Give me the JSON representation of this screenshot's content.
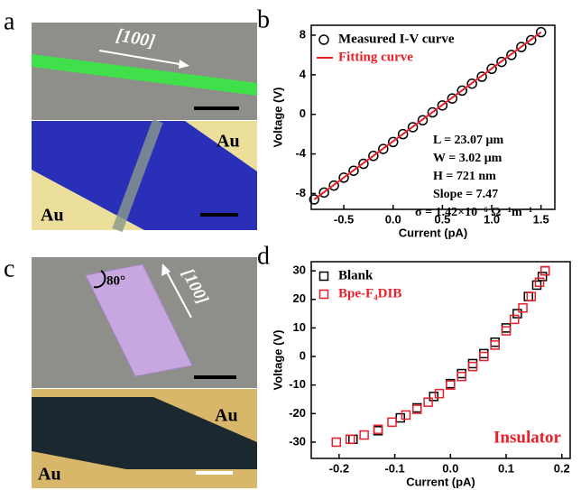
{
  "panels": {
    "a": {
      "label": "a",
      "direction": "[100]",
      "electrodes": [
        "Au",
        "Au"
      ]
    },
    "c": {
      "label": "c",
      "angle": "80°",
      "direction": "[100]",
      "electrodes": [
        "Au",
        "Au"
      ]
    }
  },
  "chart_data": [
    {
      "type": "scatter",
      "label": "b",
      "x_label": "Current (pA)",
      "y_label": "Voltage (V)",
      "xlim": [
        -0.83,
        1.64
      ],
      "ylim": [
        -9.6,
        9.0
      ],
      "xticks": [
        -0.5,
        {
          "value": 0,
          "label": "0.0"
        },
        0.5,
        {
          "value": 1,
          "label": "1.0"
        },
        1.5
      ],
      "yticks": [
        -8,
        -4,
        0,
        4,
        8
      ],
      "legend": "upper left",
      "series": [
        {
          "name": "Measured I-V curve",
          "color": "#000000",
          "marker": "circle",
          "x": [
            -0.8,
            -0.7,
            -0.6,
            -0.5,
            -0.4,
            -0.3,
            -0.2,
            -0.1,
            0,
            0.1,
            0.2,
            0.3,
            0.4,
            0.5,
            0.6,
            0.7,
            0.8,
            0.9,
            1.0,
            1.1,
            1.2,
            1.3,
            1.4,
            1.5
          ],
          "values": [
            -8.6,
            -7.9,
            -7.2,
            -6.4,
            -5.7,
            -5.0,
            -4.2,
            -3.5,
            -2.8,
            -2.0,
            -1.3,
            -0.6,
            0.2,
            0.9,
            1.6,
            2.4,
            3.1,
            3.8,
            4.6,
            5.3,
            6.0,
            6.8,
            7.5,
            8.3
          ]
        },
        {
          "name": "Fitting curve",
          "color": "#e8202a",
          "marker": "line",
          "x": [
            -0.8,
            1.5
          ],
          "values": [
            -8.6,
            8.3
          ]
        }
      ],
      "annotations": [
        "L = 23.07 μm",
        "W = 3.02 μm",
        "H = 721 nm",
        "Slope = 7.47",
        "σ = 1.42×10⁻⁶ Ω⁻¹m⁻¹"
      ],
      "annotation_color": "#000000"
    },
    {
      "type": "scatter",
      "label": "d",
      "x_label": "Current (pA)",
      "y_label": "Voltage (V)",
      "xlim": [
        -0.25,
        0.215
      ],
      "ylim": [
        -35.7,
        33.2
      ],
      "xticks": [
        -0.2,
        -0.1,
        {
          "value": 0,
          "label": "0.0"
        },
        0.1,
        0.2
      ],
      "yticks": [
        -30,
        -20,
        -10,
        0,
        10,
        20,
        30
      ],
      "legend": "upper left",
      "series": [
        {
          "name": "Blank",
          "color": "#000000",
          "marker": "square",
          "x": [
            -0.175,
            -0.13,
            -0.09,
            -0.06,
            -0.03,
            0,
            0.02,
            0.04,
            0.06,
            0.08,
            0.1,
            0.12,
            0.14,
            0.155,
            0.165,
            0.17
          ],
          "values": [
            -29,
            -26,
            -21.5,
            -18,
            -14,
            -9.5,
            -6,
            -2.5,
            1,
            5,
            10,
            15,
            21,
            25,
            28,
            30
          ]
        },
        {
          "name": "Bpe-F₄DIB",
          "color": "#e8202a",
          "marker": "square",
          "x": [
            -0.205,
            -0.18,
            -0.155,
            -0.13,
            -0.105,
            -0.08,
            -0.06,
            -0.04,
            -0.02,
            0,
            0.02,
            0.04,
            0.06,
            0.08,
            0.1,
            0.115,
            0.13,
            0.145,
            0.16,
            0.17
          ],
          "values": [
            -30,
            -29,
            -27.5,
            -25.5,
            -23,
            -20.5,
            -18.5,
            -16,
            -13,
            -10,
            -7,
            -3.5,
            0,
            4,
            9,
            13,
            17,
            21,
            26,
            30
          ]
        }
      ],
      "annotations": [
        "Insulator"
      ],
      "annotation_color": "#e8202a"
    }
  ]
}
